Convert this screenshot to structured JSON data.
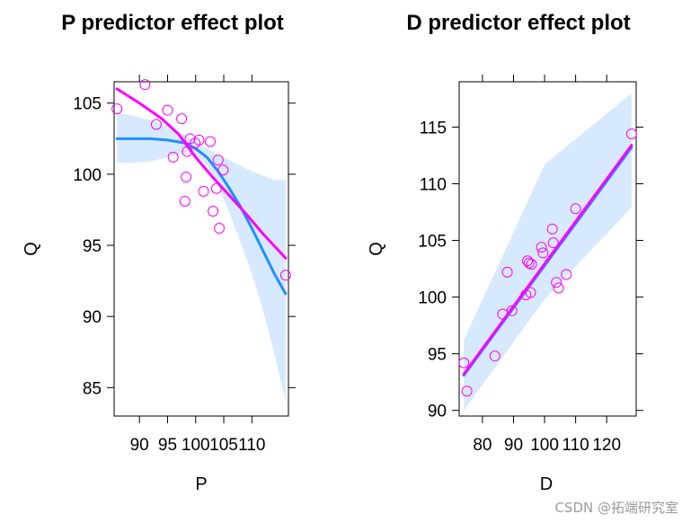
{
  "chart_data": [
    {
      "type": "scatter",
      "title": "P predictor effect plot",
      "xlabel": "P",
      "ylabel": "Q",
      "xlim": [
        85.5,
        116.5
      ],
      "ylim": [
        83,
        106.5
      ],
      "xticks": [
        90,
        95,
        100,
        105,
        110
      ],
      "xtick_labels": [
        "90",
        "95",
        "100",
        "105",
        "110"
      ],
      "yticks": [
        85,
        90,
        95,
        100,
        105
      ],
      "ytick_labels": [
        "85",
        "90",
        "95",
        "100",
        "105"
      ],
      "colors": {
        "points": "#ff00ff",
        "smooth": "#ff00ff",
        "fit": "#1e90ff",
        "band": "#d6e9ff"
      },
      "points": {
        "x": [
          86,
          91,
          93,
          95,
          96,
          97.5,
          98.1,
          98.3,
          98.5,
          99,
          99.9,
          100.6,
          101.4,
          102.6,
          103.1,
          103.7,
          104.0,
          104.2,
          104.9,
          116
        ],
        "y": [
          104.6,
          106.3,
          103.5,
          104.5,
          101.2,
          103.9,
          98.1,
          99.8,
          101.6,
          102.5,
          102.2,
          102.4,
          98.8,
          102.3,
          97.4,
          99.0,
          101.0,
          96.2,
          100.3,
          92.9
        ]
      },
      "fit": {
        "x": [
          86,
          89,
          92,
          95,
          98,
          100,
          102,
          104,
          106,
          108,
          110,
          112,
          114,
          116
        ],
        "y": [
          102.5,
          102.5,
          102.5,
          102.4,
          102.2,
          101.8,
          101.2,
          100.2,
          99.0,
          97.7,
          96.2,
          94.6,
          93.0,
          91.6
        ]
      },
      "band_upper": [
        104.3,
        104.1,
        103.8,
        103.4,
        102.8,
        102.3,
        101.8,
        101.4,
        101.0,
        100.6,
        100.2,
        99.9,
        99.6,
        99.6
      ],
      "band_lower": [
        100.8,
        100.8,
        100.9,
        101.2,
        101.5,
        101.4,
        100.6,
        99.2,
        97.3,
        95.2,
        93.0,
        90.4,
        87.4,
        84.0
      ],
      "smooth": {
        "x": [
          86,
          90,
          94,
          97,
          100,
          103,
          106,
          109,
          112,
          116
        ],
        "y": [
          106.0,
          105.0,
          103.9,
          102.8,
          101.2,
          99.8,
          98.5,
          97.2,
          95.8,
          94.1
        ]
      }
    },
    {
      "type": "scatter",
      "title": "D predictor effect plot",
      "xlabel": "D",
      "ylabel": "Q",
      "xlim": [
        72.5,
        129.5
      ],
      "ylim": [
        89.5,
        119
      ],
      "xticks": [
        80,
        90,
        100,
        110,
        120
      ],
      "xtick_labels": [
        "80",
        "90",
        "100",
        "110",
        "120"
      ],
      "yticks": [
        90,
        95,
        100,
        105,
        110,
        115
      ],
      "ytick_labels": [
        "90",
        "95",
        "100",
        "105",
        "110",
        "115"
      ],
      "colors": {
        "points": "#ff00ff",
        "smooth": "#ff00ff",
        "fit": "#1e90ff",
        "band": "#d6e9ff"
      },
      "points": {
        "x": [
          74,
          75,
          84,
          86.5,
          88,
          89.5,
          94,
          94.5,
          95,
          95.5,
          95.8,
          99,
          99.5,
          102.5,
          102.8,
          103.8,
          104.5,
          107,
          110,
          128
        ],
        "y": [
          94.2,
          91.7,
          94.8,
          98.5,
          102.2,
          98.8,
          100.2,
          103.2,
          103.0,
          100.4,
          102.9,
          104.4,
          103.9,
          106.0,
          104.8,
          101.3,
          100.8,
          102.0,
          107.8,
          114.4
        ]
      },
      "fit": {
        "x": [
          74,
          128
        ],
        "y": [
          93.1,
          113.2
        ]
      },
      "band_upper": [
        96.2,
        111.7,
        118.0
      ],
      "band_lower": [
        90.0,
        99.8,
        107.9
      ],
      "band_x": [
        74,
        100,
        128
      ],
      "smooth": {
        "x": [
          74,
          128
        ],
        "y": [
          93.2,
          113.4
        ]
      }
    }
  ],
  "watermark": "CSDN @拓端研究室"
}
